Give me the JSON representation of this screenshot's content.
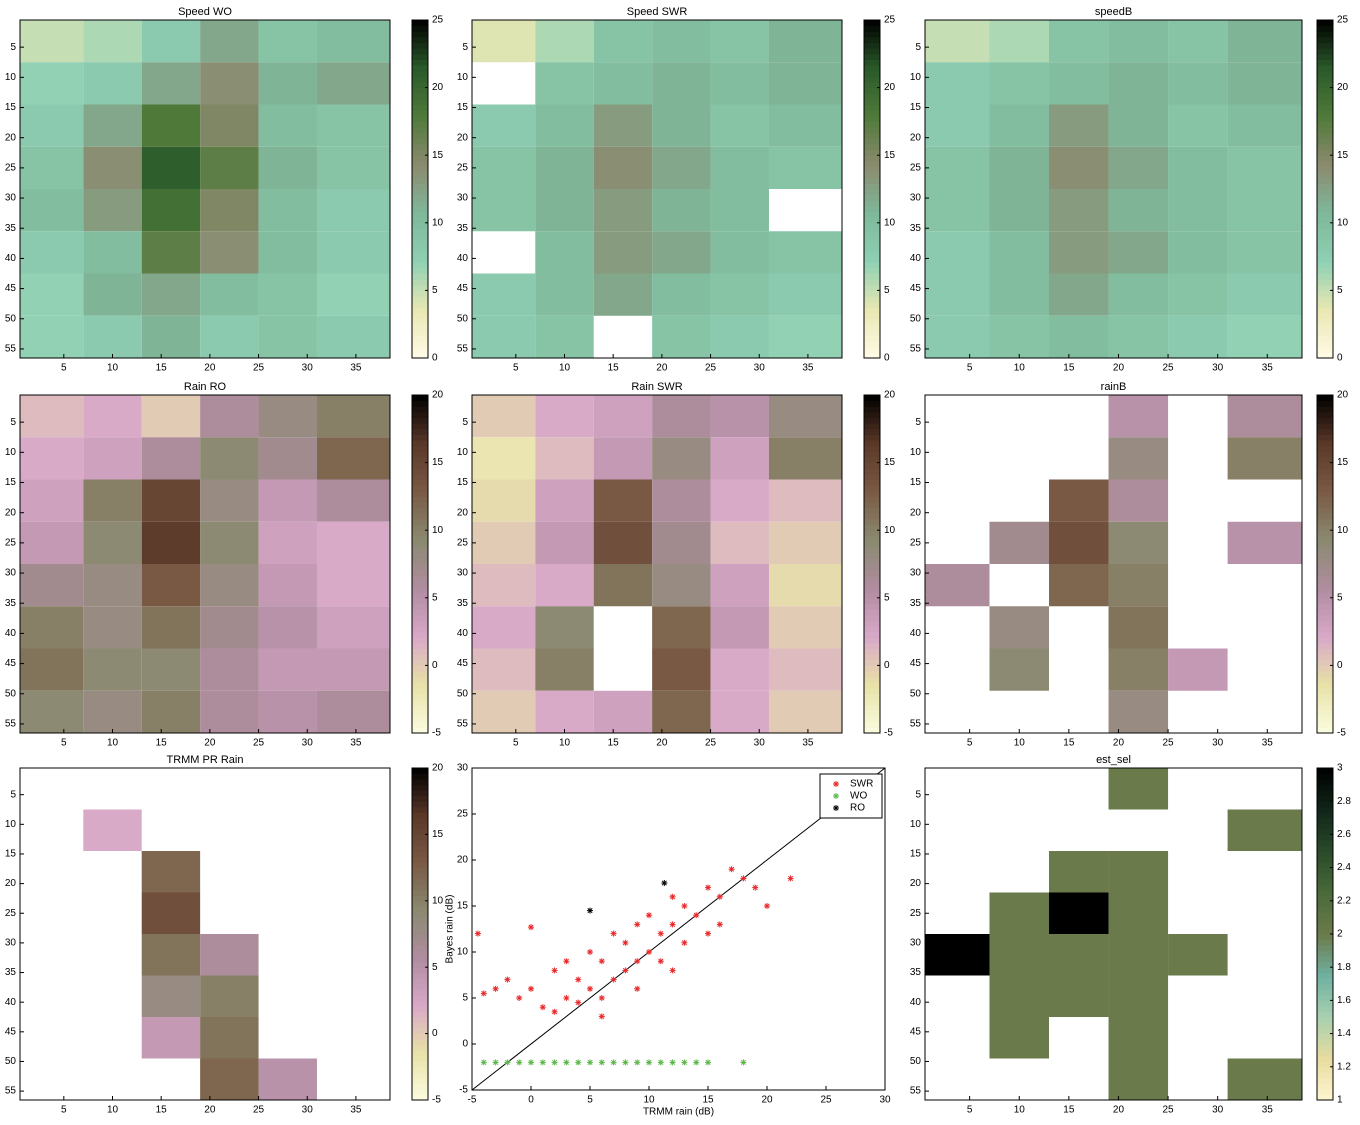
{
  "chart_data": [
    {
      "type": "heatmap",
      "title": "Speed WO",
      "x": [
        4,
        10,
        16,
        22,
        28,
        34
      ],
      "y": [
        4,
        11,
        18,
        25,
        32,
        39,
        46,
        53
      ],
      "values": [
        [
          5,
          6,
          8,
          12,
          9,
          10
        ],
        [
          7,
          8,
          12,
          14,
          11,
          12
        ],
        [
          8,
          12,
          18,
          15,
          10,
          9
        ],
        [
          9,
          14,
          21,
          17,
          11,
          9
        ],
        [
          10,
          13,
          19,
          15,
          10,
          8
        ],
        [
          8,
          10,
          17,
          14,
          10,
          8
        ],
        [
          7,
          11,
          12,
          10,
          9,
          7
        ],
        [
          7,
          8,
          11,
          8,
          9,
          8
        ]
      ],
      "xlim": [
        0.5,
        38.5
      ],
      "ylim": [
        0.5,
        56.5
      ],
      "y_reversed": true,
      "xticks": [
        5,
        10,
        15,
        20,
        25,
        30,
        35
      ],
      "yticks": [
        5,
        10,
        15,
        20,
        25,
        30,
        35,
        40,
        45,
        50,
        55
      ],
      "clim": [
        0,
        25
      ],
      "cticks": [
        0,
        5,
        10,
        15,
        20,
        25
      ],
      "colormap": [
        "#fffbe6",
        "#e9e8b2",
        "#8fd0b4",
        "#7fb89a",
        "#8b8a6e",
        "#4f7a3a",
        "#2a5a2a",
        "#000000"
      ]
    },
    {
      "type": "heatmap",
      "title": "Speed SWR",
      "x": [
        4,
        10,
        16,
        22,
        28,
        34
      ],
      "y": [
        4,
        11,
        18,
        25,
        32,
        39,
        46,
        53
      ],
      "values": [
        [
          4,
          6,
          9,
          10,
          9,
          11
        ],
        [
          null,
          9,
          10,
          11,
          10,
          11
        ],
        [
          8,
          10,
          13,
          11,
          9,
          10
        ],
        [
          9,
          11,
          14,
          12,
          10,
          9
        ],
        [
          9,
          11,
          13,
          11,
          10,
          null
        ],
        [
          null,
          10,
          13,
          12,
          10,
          9
        ],
        [
          8,
          10,
          12,
          10,
          9,
          8
        ],
        [
          8,
          9,
          null,
          9,
          8,
          7
        ]
      ],
      "xlim": [
        0.5,
        38.5
      ],
      "ylim": [
        0.5,
        56.5
      ],
      "y_reversed": true,
      "xticks": [
        5,
        10,
        15,
        20,
        25,
        30,
        35
      ],
      "yticks": [
        5,
        10,
        15,
        20,
        25,
        30,
        35,
        40,
        45,
        50,
        55
      ],
      "clim": [
        0,
        25
      ],
      "cticks": [
        0,
        5,
        10,
        15,
        20,
        25
      ],
      "colormap": [
        "#fffbe6",
        "#e9e8b2",
        "#8fd0b4",
        "#7fb89a",
        "#8b8a6e",
        "#4f7a3a",
        "#2a5a2a",
        "#000000"
      ]
    },
    {
      "type": "heatmap",
      "title": "speedB",
      "x": [
        4,
        10,
        16,
        22,
        28,
        34
      ],
      "y": [
        4,
        11,
        18,
        25,
        32,
        39,
        46,
        53
      ],
      "values": [
        [
          5,
          6,
          9,
          10,
          9,
          11
        ],
        [
          8,
          9,
          10,
          11,
          10,
          11
        ],
        [
          8,
          10,
          13,
          11,
          9,
          10
        ],
        [
          9,
          11,
          14,
          12,
          10,
          9
        ],
        [
          9,
          11,
          13,
          11,
          10,
          9
        ],
        [
          8,
          10,
          13,
          12,
          10,
          9
        ],
        [
          8,
          10,
          12,
          10,
          9,
          8
        ],
        [
          8,
          9,
          10,
          9,
          8,
          7
        ]
      ],
      "xlim": [
        0.5,
        38.5
      ],
      "ylim": [
        0.5,
        56.5
      ],
      "y_reversed": true,
      "xticks": [
        5,
        10,
        15,
        20,
        25,
        30,
        35
      ],
      "yticks": [
        5,
        10,
        15,
        20,
        25,
        30,
        35,
        40,
        45,
        50,
        55
      ],
      "clim": [
        0,
        25
      ],
      "cticks": [
        0,
        5,
        10,
        15,
        20,
        25
      ],
      "colormap": [
        "#fffbe6",
        "#e9e8b2",
        "#8fd0b4",
        "#7fb89a",
        "#8b8a6e",
        "#4f7a3a",
        "#2a5a2a",
        "#000000"
      ]
    },
    {
      "type": "heatmap",
      "title": "Rain RO",
      "x": [
        4,
        10,
        16,
        22,
        28,
        34
      ],
      "y": [
        4,
        11,
        18,
        25,
        32,
        39,
        46,
        53
      ],
      "values": [
        [
          1,
          2,
          0,
          6,
          8,
          10
        ],
        [
          2,
          3,
          6,
          9,
          7,
          12
        ],
        [
          3,
          10,
          15,
          8,
          4,
          6
        ],
        [
          4,
          9,
          16,
          9,
          3,
          2
        ],
        [
          7,
          8,
          13,
          8,
          4,
          2
        ],
        [
          10,
          8,
          11,
          7,
          5,
          3
        ],
        [
          11,
          9,
          9,
          6,
          4,
          4
        ],
        [
          9,
          8,
          10,
          6,
          5,
          6
        ]
      ],
      "xlim": [
        0.5,
        38.5
      ],
      "ylim": [
        0.5,
        56.5
      ],
      "y_reversed": true,
      "xticks": [
        5,
        10,
        15,
        20,
        25,
        30,
        35
      ],
      "yticks": [
        5,
        10,
        15,
        20,
        25,
        30,
        35,
        40,
        45,
        50,
        55
      ],
      "clim": [
        -5,
        20
      ],
      "cticks": [
        -5,
        0,
        5,
        10,
        15,
        20
      ],
      "colormap": [
        "#fbfde0",
        "#e8e2a8",
        "#d8a8c8",
        "#b08ca0",
        "#8a8a70",
        "#7a5a45",
        "#5a3828",
        "#000000"
      ]
    },
    {
      "type": "heatmap",
      "title": "Rain SWR",
      "x": [
        4,
        10,
        16,
        22,
        28,
        34
      ],
      "y": [
        4,
        11,
        18,
        25,
        32,
        39,
        46,
        53
      ],
      "values": [
        [
          0,
          2,
          3,
          6,
          5,
          8
        ],
        [
          -2,
          1,
          4,
          8,
          3,
          10
        ],
        [
          -1,
          3,
          13,
          6,
          2,
          1
        ],
        [
          0,
          4,
          14,
          7,
          1,
          0
        ],
        [
          1,
          2,
          11,
          8,
          3,
          -1
        ],
        [
          2,
          9,
          null,
          12,
          4,
          0
        ],
        [
          1,
          10,
          null,
          13,
          2,
          1
        ],
        [
          0,
          2,
          3,
          12,
          2,
          0
        ]
      ],
      "xlim": [
        0.5,
        38.5
      ],
      "ylim": [
        0.5,
        56.5
      ],
      "y_reversed": true,
      "xticks": [
        5,
        10,
        15,
        20,
        25,
        30,
        35
      ],
      "yticks": [
        5,
        10,
        15,
        20,
        25,
        30,
        35,
        40,
        45,
        50,
        55
      ],
      "clim": [
        -5,
        20
      ],
      "cticks": [
        -5,
        0,
        5,
        10,
        15,
        20
      ],
      "colormap": [
        "#fbfde0",
        "#e8e2a8",
        "#d8a8c8",
        "#b08ca0",
        "#8a8a70",
        "#7a5a45",
        "#5a3828",
        "#000000"
      ]
    },
    {
      "type": "heatmap",
      "title": "rainB",
      "x": [
        4,
        10,
        16,
        22,
        28,
        34
      ],
      "y": [
        4,
        11,
        18,
        25,
        32,
        39,
        46,
        53
      ],
      "values": [
        [
          null,
          null,
          null,
          5,
          null,
          6
        ],
        [
          null,
          null,
          null,
          8,
          null,
          10
        ],
        [
          null,
          null,
          13,
          6,
          null,
          null
        ],
        [
          null,
          7,
          14,
          9,
          null,
          5
        ],
        [
          6,
          null,
          12,
          10,
          null,
          null
        ],
        [
          null,
          8,
          null,
          11,
          null,
          null
        ],
        [
          null,
          9,
          null,
          10,
          4,
          null
        ],
        [
          null,
          null,
          null,
          8,
          null,
          null
        ]
      ],
      "xlim": [
        0.5,
        38.5
      ],
      "ylim": [
        0.5,
        56.5
      ],
      "y_reversed": true,
      "xticks": [
        5,
        10,
        15,
        20,
        25,
        30,
        35
      ],
      "yticks": [
        5,
        10,
        15,
        20,
        25,
        30,
        35,
        40,
        45,
        50,
        55
      ],
      "clim": [
        -5,
        20
      ],
      "cticks": [
        -5,
        0,
        5,
        10,
        15,
        20
      ],
      "colormap": [
        "#fbfde0",
        "#e8e2a8",
        "#d8a8c8",
        "#b08ca0",
        "#8a8a70",
        "#7a5a45",
        "#5a3828",
        "#000000"
      ]
    },
    {
      "type": "heatmap",
      "title": "TRMM PR Rain",
      "x": [
        4,
        10,
        16,
        22,
        28,
        34
      ],
      "y": [
        4,
        11,
        18,
        25,
        32,
        39,
        46,
        53
      ],
      "values": [
        [
          null,
          null,
          null,
          null,
          null,
          null
        ],
        [
          null,
          2,
          null,
          null,
          null,
          null
        ],
        [
          null,
          null,
          12,
          null,
          null,
          null
        ],
        [
          null,
          null,
          14,
          null,
          null,
          null
        ],
        [
          null,
          null,
          11,
          6,
          null,
          null
        ],
        [
          null,
          null,
          8,
          10,
          null,
          null
        ],
        [
          null,
          null,
          4,
          11,
          null,
          null
        ],
        [
          null,
          null,
          null,
          12,
          5,
          null
        ]
      ],
      "xlim": [
        0.5,
        38.5
      ],
      "ylim": [
        0.5,
        56.5
      ],
      "y_reversed": true,
      "xticks": [
        5,
        10,
        15,
        20,
        25,
        30,
        35
      ],
      "yticks": [
        5,
        10,
        15,
        20,
        25,
        30,
        35,
        40,
        45,
        50,
        55
      ],
      "clim": [
        -5,
        20
      ],
      "cticks": [
        -5,
        0,
        5,
        10,
        15,
        20
      ],
      "colormap": [
        "#fbfde0",
        "#e8e2a8",
        "#d8a8c8",
        "#b08ca0",
        "#8a8a70",
        "#7a5a45",
        "#5a3828",
        "#000000"
      ]
    },
    {
      "type": "scatter",
      "xlabel": "TRMM rain (dB)",
      "ylabel": "Bayes rain (dB)",
      "xlim": [
        -5,
        30
      ],
      "ylim": [
        -5,
        30
      ],
      "xticks": [
        -5,
        0,
        5,
        10,
        15,
        20,
        25,
        30
      ],
      "yticks": [
        -5,
        0,
        5,
        10,
        15,
        20,
        25,
        30
      ],
      "identity_line": true,
      "legend": "upper right",
      "series": [
        {
          "name": "SWR",
          "color": "#e8282a",
          "x": [
            -4.5,
            -4,
            -3,
            -2,
            -1,
            0,
            0,
            1,
            2,
            2,
            3,
            3,
            4,
            4,
            5,
            5,
            6,
            6,
            7,
            7,
            8,
            8,
            9,
            9,
            10,
            10,
            11,
            11,
            12,
            12,
            13,
            13,
            14,
            15,
            15,
            16,
            17,
            18,
            19,
            22,
            20,
            6,
            9,
            12,
            16
          ],
          "values": [
            12,
            5.5,
            6,
            7,
            5,
            12.7,
            6,
            4,
            3.5,
            8,
            5,
            9,
            4.5,
            7,
            6,
            10,
            5,
            9,
            7,
            12,
            8,
            11,
            9,
            13,
            10,
            14,
            12,
            9,
            13,
            16,
            11,
            15,
            14,
            17,
            12,
            16,
            19,
            18,
            17,
            18,
            15,
            3,
            6,
            8,
            13
          ]
        },
        {
          "name": "WO",
          "color": "#5cb84a",
          "x": [
            -4,
            -3,
            -2,
            -1,
            0,
            1,
            2,
            3,
            4,
            5,
            6,
            7,
            8,
            9,
            10,
            11,
            12,
            13,
            14,
            15,
            18
          ],
          "values": [
            -2,
            -2,
            -2,
            -2,
            -2,
            -2,
            -2,
            -2,
            -2,
            -2,
            -2,
            -2,
            -2,
            -2,
            -2,
            -2,
            -2,
            -2,
            -2,
            -2,
            -2
          ]
        },
        {
          "name": "RO",
          "color": "#000000",
          "x": [
            5,
            11.3
          ],
          "values": [
            14.5,
            17.5
          ]
        }
      ]
    },
    {
      "type": "heatmap",
      "title": "est_sel",
      "x": [
        4,
        10,
        16,
        22,
        28,
        34
      ],
      "y": [
        4,
        11,
        18,
        25,
        32,
        39,
        46,
        53
      ],
      "values": [
        [
          null,
          null,
          null,
          2,
          null,
          null
        ],
        [
          null,
          null,
          null,
          null,
          null,
          2
        ],
        [
          null,
          null,
          2,
          2,
          null,
          null
        ],
        [
          null,
          2,
          3,
          2,
          null,
          null
        ],
        [
          3,
          2,
          2,
          2,
          2,
          null
        ],
        [
          null,
          2,
          2,
          2,
          null,
          null
        ],
        [
          null,
          2,
          null,
          2,
          null,
          null
        ],
        [
          null,
          null,
          null,
          2,
          null,
          2
        ]
      ],
      "xlim": [
        0.5,
        38.5
      ],
      "ylim": [
        0.5,
        56.5
      ],
      "y_reversed": true,
      "xticks": [
        5,
        10,
        15,
        20,
        25,
        30,
        35
      ],
      "yticks": [
        5,
        10,
        15,
        20,
        25,
        30,
        35,
        40,
        45,
        50,
        55
      ],
      "clim": [
        1,
        3
      ],
      "cticks": [
        1,
        1.2,
        1.4,
        1.6,
        1.8,
        2,
        2.2,
        2.4,
        2.6,
        2.8,
        3
      ],
      "colormap": [
        "#fff5d0",
        "#e8dca0",
        "#a8d0b0",
        "#70b0a0",
        "#6b7a4a",
        "#4a6a3a",
        "#2a4a2a",
        "#10261a",
        "#000000"
      ]
    }
  ]
}
